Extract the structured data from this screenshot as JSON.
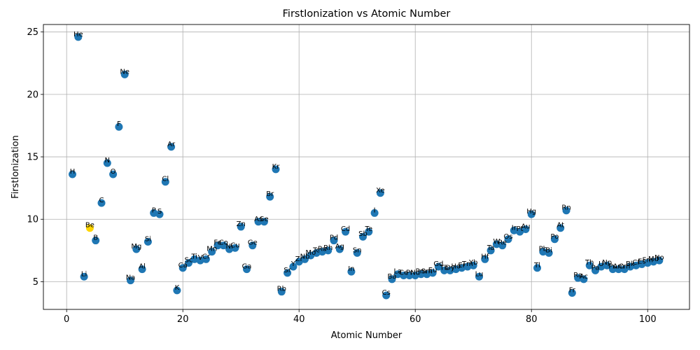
{
  "chart_data": {
    "type": "scatter",
    "title": "FirstIonization vs Atomic Number",
    "xlabel": "Atomic Number",
    "ylabel": "FirstIonization",
    "xlim": [
      -4,
      107.2
    ],
    "ylim": [
      2.78,
      25.6
    ],
    "xticks": [
      0,
      20,
      40,
      60,
      80,
      100
    ],
    "yticks": [
      5,
      10,
      15,
      20,
      25
    ],
    "grid": true,
    "colors": {
      "default": "#1f77b4",
      "highlight": "#ffd500"
    },
    "highlight_symbol": "Be",
    "points": [
      {
        "z": 1,
        "sym": "H",
        "v": 13.6
      },
      {
        "z": 2,
        "sym": "He",
        "v": 24.6
      },
      {
        "z": 3,
        "sym": "Li",
        "v": 5.4
      },
      {
        "z": 4,
        "sym": "Be",
        "v": 9.3
      },
      {
        "z": 5,
        "sym": "B",
        "v": 8.3
      },
      {
        "z": 6,
        "sym": "C",
        "v": 11.3
      },
      {
        "z": 7,
        "sym": "N",
        "v": 14.5
      },
      {
        "z": 8,
        "sym": "O",
        "v": 13.6
      },
      {
        "z": 9,
        "sym": "F",
        "v": 17.4
      },
      {
        "z": 10,
        "sym": "Ne",
        "v": 21.6
      },
      {
        "z": 11,
        "sym": "Na",
        "v": 5.1
      },
      {
        "z": 12,
        "sym": "Mg",
        "v": 7.6
      },
      {
        "z": 13,
        "sym": "Al",
        "v": 6.0
      },
      {
        "z": 14,
        "sym": "Si",
        "v": 8.2
      },
      {
        "z": 15,
        "sym": "P",
        "v": 10.5
      },
      {
        "z": 16,
        "sym": "S",
        "v": 10.4
      },
      {
        "z": 17,
        "sym": "Cl",
        "v": 13.0
      },
      {
        "z": 18,
        "sym": "Ar",
        "v": 15.8
      },
      {
        "z": 19,
        "sym": "K",
        "v": 4.3
      },
      {
        "z": 20,
        "sym": "Ca",
        "v": 6.1
      },
      {
        "z": 21,
        "sym": "Sc",
        "v": 6.5
      },
      {
        "z": 22,
        "sym": "Ti",
        "v": 6.8
      },
      {
        "z": 23,
        "sym": "V",
        "v": 6.7
      },
      {
        "z": 24,
        "sym": "Cr",
        "v": 6.8
      },
      {
        "z": 25,
        "sym": "Mn",
        "v": 7.4
      },
      {
        "z": 26,
        "sym": "Fe",
        "v": 7.9
      },
      {
        "z": 27,
        "sym": "Co",
        "v": 7.9
      },
      {
        "z": 28,
        "sym": "Ni",
        "v": 7.6
      },
      {
        "z": 29,
        "sym": "Cu",
        "v": 7.7
      },
      {
        "z": 30,
        "sym": "Zn",
        "v": 9.4
      },
      {
        "z": 31,
        "sym": "Ga",
        "v": 6.0
      },
      {
        "z": 32,
        "sym": "Ge",
        "v": 7.9
      },
      {
        "z": 33,
        "sym": "As",
        "v": 9.8
      },
      {
        "z": 34,
        "sym": "Se",
        "v": 9.8
      },
      {
        "z": 35,
        "sym": "Br",
        "v": 11.8
      },
      {
        "z": 36,
        "sym": "Kr",
        "v": 14.0
      },
      {
        "z": 37,
        "sym": "Rb",
        "v": 4.2
      },
      {
        "z": 38,
        "sym": "Sr",
        "v": 5.7
      },
      {
        "z": 39,
        "sym": "Y",
        "v": 6.2
      },
      {
        "z": 40,
        "sym": "Zr",
        "v": 6.6
      },
      {
        "z": 41,
        "sym": "Nb",
        "v": 6.8
      },
      {
        "z": 42,
        "sym": "Mo",
        "v": 7.1
      },
      {
        "z": 43,
        "sym": "Tc",
        "v": 7.3
      },
      {
        "z": 44,
        "sym": "Ru",
        "v": 7.4
      },
      {
        "z": 45,
        "sym": "Rh",
        "v": 7.5
      },
      {
        "z": 46,
        "sym": "Pd",
        "v": 8.3
      },
      {
        "z": 47,
        "sym": "Ag",
        "v": 7.6
      },
      {
        "z": 48,
        "sym": "Cd",
        "v": 9.0
      },
      {
        "z": 49,
        "sym": "In",
        "v": 5.8
      },
      {
        "z": 50,
        "sym": "Sn",
        "v": 7.3
      },
      {
        "z": 51,
        "sym": "Sb",
        "v": 8.6
      },
      {
        "z": 52,
        "sym": "Te",
        "v": 9.0
      },
      {
        "z": 53,
        "sym": "I",
        "v": 10.5
      },
      {
        "z": 54,
        "sym": "Xe",
        "v": 12.1
      },
      {
        "z": 55,
        "sym": "Cs",
        "v": 3.9
      },
      {
        "z": 56,
        "sym": "Ba",
        "v": 5.2
      },
      {
        "z": 57,
        "sym": "La",
        "v": 5.6
      },
      {
        "z": 58,
        "sym": "Ce",
        "v": 5.5
      },
      {
        "z": 59,
        "sym": "Pr",
        "v": 5.5
      },
      {
        "z": 60,
        "sym": "Nd",
        "v": 5.5
      },
      {
        "z": 61,
        "sym": "Pm",
        "v": 5.6
      },
      {
        "z": 62,
        "sym": "Sm",
        "v": 5.6
      },
      {
        "z": 63,
        "sym": "Eu",
        "v": 5.7
      },
      {
        "z": 64,
        "sym": "Gd",
        "v": 6.2
      },
      {
        "z": 65,
        "sym": "Tb",
        "v": 5.9
      },
      {
        "z": 66,
        "sym": "Dy",
        "v": 5.9
      },
      {
        "z": 67,
        "sym": "Ho",
        "v": 6.0
      },
      {
        "z": 68,
        "sym": "Er",
        "v": 6.1
      },
      {
        "z": 69,
        "sym": "Tm",
        "v": 6.2
      },
      {
        "z": 70,
        "sym": "Yb",
        "v": 6.3
      },
      {
        "z": 71,
        "sym": "Lu",
        "v": 5.4
      },
      {
        "z": 72,
        "sym": "Hf",
        "v": 6.8
      },
      {
        "z": 73,
        "sym": "Ta",
        "v": 7.5
      },
      {
        "z": 74,
        "sym": "W",
        "v": 8.0
      },
      {
        "z": 75,
        "sym": "Re",
        "v": 7.9
      },
      {
        "z": 76,
        "sym": "Os",
        "v": 8.4
      },
      {
        "z": 77,
        "sym": "Ir",
        "v": 9.1
      },
      {
        "z": 78,
        "sym": "Pt",
        "v": 9.0
      },
      {
        "z": 79,
        "sym": "Au",
        "v": 9.2
      },
      {
        "z": 80,
        "sym": "Hg",
        "v": 10.4
      },
      {
        "z": 81,
        "sym": "Tl",
        "v": 6.1
      },
      {
        "z": 82,
        "sym": "Pb",
        "v": 7.4
      },
      {
        "z": 83,
        "sym": "Bi",
        "v": 7.3
      },
      {
        "z": 84,
        "sym": "Po",
        "v": 8.4
      },
      {
        "z": 85,
        "sym": "At",
        "v": 9.3
      },
      {
        "z": 86,
        "sym": "Rn",
        "v": 10.7
      },
      {
        "z": 87,
        "sym": "Fr",
        "v": 4.1
      },
      {
        "z": 88,
        "sym": "Ra",
        "v": 5.3
      },
      {
        "z": 89,
        "sym": "Ac",
        "v": 5.2
      },
      {
        "z": 90,
        "sym": "Th",
        "v": 6.3
      },
      {
        "z": 91,
        "sym": "Pa",
        "v": 5.9
      },
      {
        "z": 92,
        "sym": "U",
        "v": 6.2
      },
      {
        "z": 93,
        "sym": "Np",
        "v": 6.3
      },
      {
        "z": 94,
        "sym": "Pu",
        "v": 6.0
      },
      {
        "z": 95,
        "sym": "Am",
        "v": 6.0
      },
      {
        "z": 96,
        "sym": "Cm",
        "v": 6.0
      },
      {
        "z": 97,
        "sym": "Bk",
        "v": 6.2
      },
      {
        "z": 98,
        "sym": "Cf",
        "v": 6.3
      },
      {
        "z": 99,
        "sym": "Es",
        "v": 6.4
      },
      {
        "z": 100,
        "sym": "Fm",
        "v": 6.5
      },
      {
        "z": 101,
        "sym": "Md",
        "v": 6.6
      },
      {
        "z": 102,
        "sym": "No",
        "v": 6.7
      }
    ]
  }
}
